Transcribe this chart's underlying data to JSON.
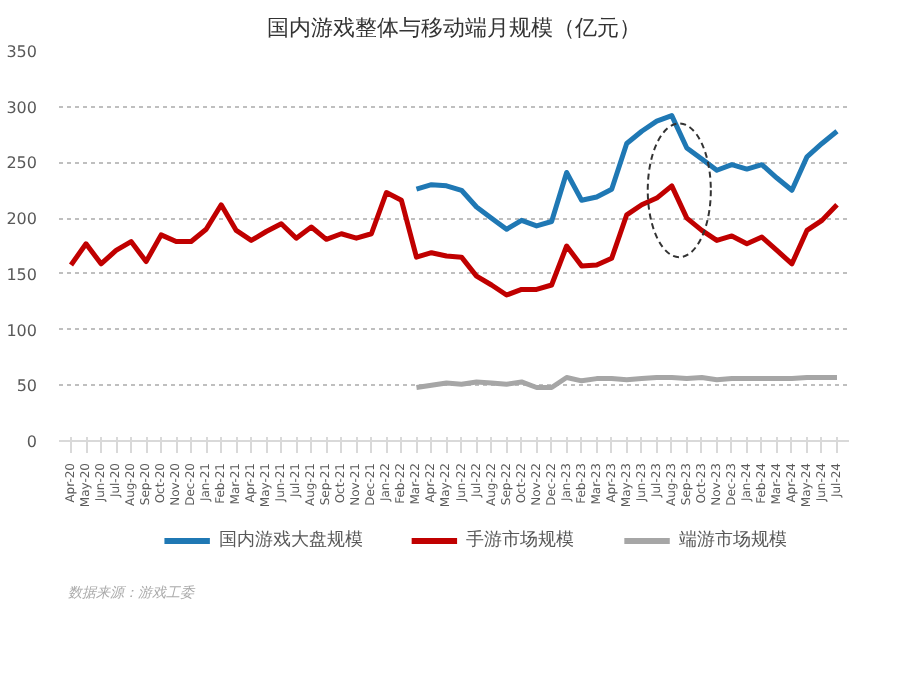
{
  "chart_data": {
    "type": "line",
    "title": "国内游戏整体与移动端月规模（亿元）",
    "categories": [
      "Apr-20",
      "May-20",
      "Jun-20",
      "Jul-20",
      "Aug-20",
      "Sep-20",
      "Oct-20",
      "Nov-20",
      "Dec-20",
      "Jan-21",
      "Feb-21",
      "Mar-21",
      "Apr-21",
      "May-21",
      "Jun-21",
      "Jul-21",
      "Aug-21",
      "Sep-21",
      "Oct-21",
      "Nov-21",
      "Dec-21",
      "Jan-22",
      "Feb-22",
      "Mar-22",
      "Apr-22",
      "May-22",
      "Jun-22",
      "Jul-22",
      "Aug-22",
      "Sep-22",
      "Oct-22",
      "Nov-22",
      "Dec-22",
      "Jan-23",
      "Feb-23",
      "Mar-23",
      "Apr-23",
      "May-23",
      "Jun-23",
      "Jul-23",
      "Aug-23",
      "Sep-23",
      "Oct-23",
      "Nov-23",
      "Dec-23",
      "Jan-24",
      "Feb-24",
      "Mar-24",
      "Apr-24",
      "May-24",
      "Jun-24",
      "Jul-24"
    ],
    "series": [
      {
        "name": "国内游戏大盘规模",
        "color": "#1f78b4",
        "values": [
          null,
          null,
          null,
          null,
          null,
          null,
          null,
          null,
          null,
          null,
          null,
          null,
          null,
          null,
          null,
          null,
          null,
          null,
          null,
          null,
          null,
          null,
          null,
          226,
          230,
          229,
          225,
          210,
          200,
          190,
          198,
          193,
          197,
          241,
          216,
          219,
          226,
          267,
          278,
          287,
          292,
          263,
          253,
          243,
          248,
          244,
          248,
          236,
          225,
          255,
          267,
          278
        ]
      },
      {
        "name": "手游市场规模",
        "color": "#c00000",
        "values": [
          158,
          177,
          159,
          171,
          179,
          161,
          185,
          179,
          179,
          190,
          212,
          189,
          180,
          188,
          195,
          182,
          192,
          181,
          186,
          182,
          186,
          223,
          216,
          165,
          169,
          166,
          165,
          148,
          140,
          131,
          136,
          136,
          140,
          175,
          157,
          158,
          164,
          203,
          212,
          218,
          229,
          200,
          189,
          180,
          184,
          177,
          183,
          171,
          159,
          189,
          198,
          212
        ]
      },
      {
        "name": "端游市场规模",
        "color": "#a6a6a6",
        "values": [
          null,
          null,
          null,
          null,
          null,
          null,
          null,
          null,
          null,
          null,
          null,
          null,
          null,
          null,
          null,
          null,
          null,
          null,
          null,
          null,
          null,
          null,
          null,
          48,
          50,
          52,
          51,
          53,
          52,
          51,
          53,
          48,
          48,
          57,
          54,
          56,
          56,
          55,
          56,
          57,
          57,
          56,
          57,
          55,
          56,
          56,
          56,
          56,
          56,
          57,
          57,
          57
        ]
      }
    ],
    "ylim": [
      0,
      350
    ],
    "yticks": [
      0,
      50,
      100,
      150,
      200,
      250,
      300,
      350
    ],
    "grid": "y",
    "legend": "bottom",
    "marker": "none",
    "line_style": "solid",
    "annotations": [
      "数据来源：游戏工委"
    ]
  }
}
